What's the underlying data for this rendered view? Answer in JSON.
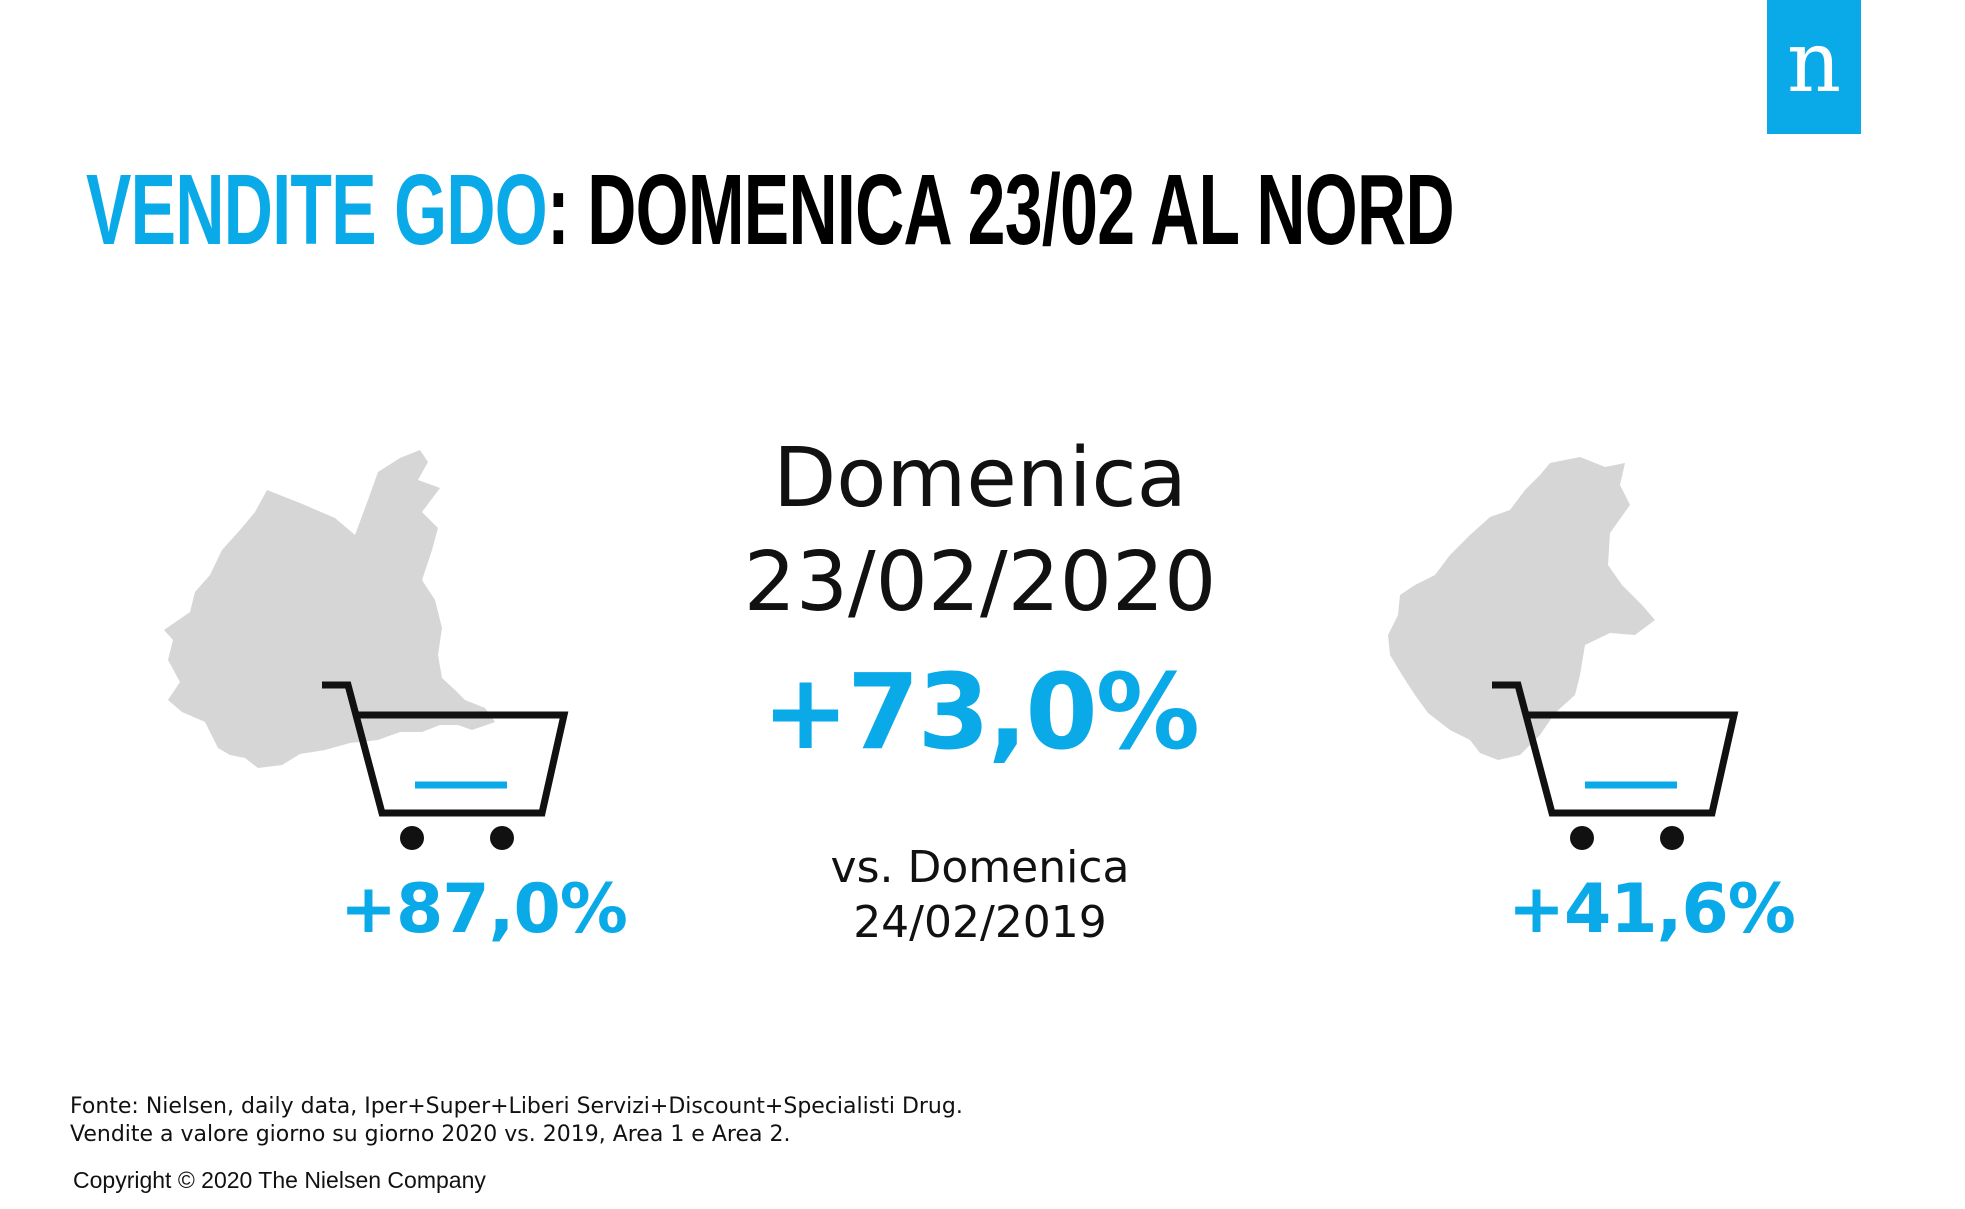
{
  "logo": {
    "letter": "n"
  },
  "title": {
    "highlight": "VENDITE GDO",
    "rest": ": DOMENICA 23/02 AL NORD"
  },
  "center": {
    "day": "Domenica",
    "date": "23/02/2020",
    "change": "+73,0%",
    "comparison_line1": "vs. Domenica",
    "comparison_line2": "24/02/2019"
  },
  "regions": [
    {
      "map_icon": "lombardia-map-icon",
      "change": "+87,0%"
    },
    {
      "map_icon": "veneto-map-icon",
      "change": "+41,6%"
    }
  ],
  "footer": {
    "source_line1": "Fonte: Nielsen, daily data, Iper+Super+Liberi Servizi+Discount+Specialisti  Drug.",
    "source_line2": "Vendite a valore giorno su giorno 2020 vs. 2019, Area 1 e Area 2.",
    "copyright": "Copyright © 2020 The Nielsen Company"
  },
  "colors": {
    "accent": "#0aa9e8",
    "map": "#d6d6d6",
    "text": "#111111"
  }
}
